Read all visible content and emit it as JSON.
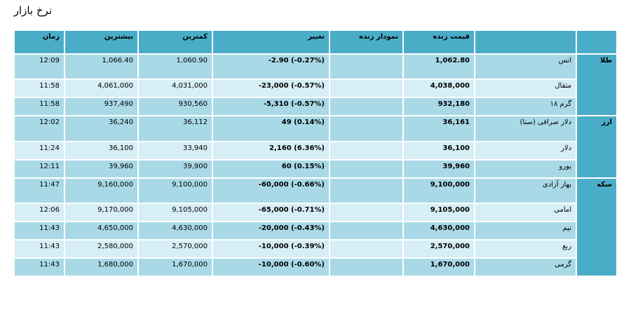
{
  "page_title": "نرخ بازار",
  "table": {
    "headers": {
      "time": "زمان",
      "high": "بیشترین",
      "low": "کمترین",
      "change": "تغییر",
      "live_chart": "نمودار زنده",
      "live_price": "قیمت زنده",
      "item": "",
      "group": ""
    },
    "groups": [
      {
        "name": "طلا",
        "rows": [
          {
            "item": "انس",
            "live_price": "1,062.80",
            "chart": "",
            "change": "-2.90 (-0.27%)",
            "low": "1,060.90",
            "high": "1,066.40",
            "time": "12:09"
          },
          {
            "item": "مثقال",
            "live_price": "4,038,000",
            "chart": "",
            "change": "-23,000 (-0.57%)",
            "low": "4,031,000",
            "high": "4,061,000",
            "time": "11:58"
          },
          {
            "item": "گرم ۱۸",
            "live_price": "932,180",
            "chart": "",
            "change": "-5,310 (-0.57%)",
            "low": "930,560",
            "high": "937,490",
            "time": "11:58"
          }
        ]
      },
      {
        "name": "ارز",
        "rows": [
          {
            "item": "دلار صرافی (سنا)",
            "live_price": "36,161",
            "chart": "",
            "change": "49 (0.14%)",
            "low": "36,112",
            "high": "36,240",
            "time": "12:02"
          },
          {
            "item": "دلار",
            "live_price": "36,100",
            "chart": "",
            "change": "2,160 (6.36%)",
            "low": "33,940",
            "high": "36,100",
            "time": "11:24"
          },
          {
            "item": "یورو",
            "live_price": "39,960",
            "chart": "",
            "change": "60 (0.15%)",
            "low": "39,900",
            "high": "39,960",
            "time": "12:11"
          }
        ]
      },
      {
        "name": "سکه",
        "rows": [
          {
            "item": "بهار آزادی",
            "live_price": "9,100,000",
            "chart": "",
            "change": "-60,000 (-0.66%)",
            "low": "9,100,000",
            "high": "9,160,000",
            "time": "11:47"
          },
          {
            "item": "امامی",
            "live_price": "9,105,000",
            "chart": "",
            "change": "-65,000 (-0.71%)",
            "low": "9,105,000",
            "high": "9,170,000",
            "time": "12:06"
          },
          {
            "item": "نیم",
            "live_price": "4,630,000",
            "chart": "",
            "change": "-20,000 (-0.43%)",
            "low": "4,630,000",
            "high": "4,650,000",
            "time": "11:43"
          },
          {
            "item": "ربع",
            "live_price": "2,570,000",
            "chart": "",
            "change": "-10,000 (-0.39%)",
            "low": "2,570,000",
            "high": "2,580,000",
            "time": "11:43"
          },
          {
            "item": "گرمی",
            "live_price": "1,670,000",
            "chart": "",
            "change": "-10,000 (-0.60%)",
            "low": "1,670,000",
            "high": "1,680,000",
            "time": "11:43"
          }
        ]
      }
    ]
  }
}
